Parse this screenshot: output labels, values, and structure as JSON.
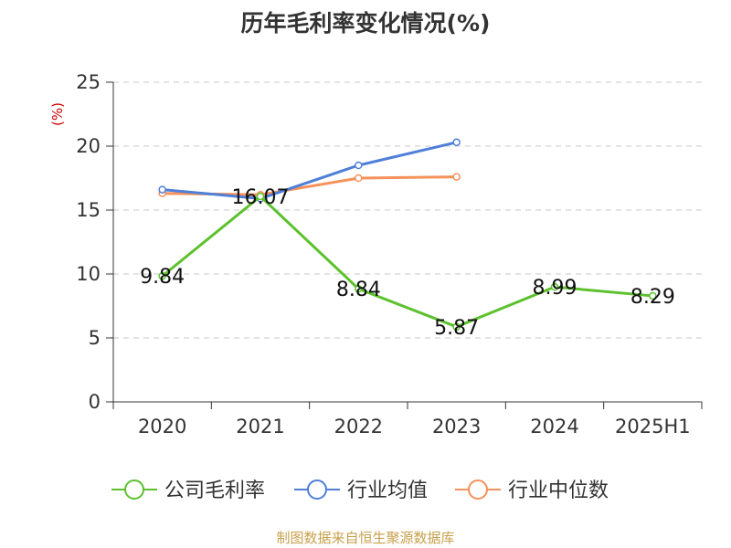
{
  "chart_data": {
    "type": "line",
    "title": "历年毛利率变化情况(%)",
    "ylabel": "(%)",
    "categories": [
      "2020",
      "2021",
      "2022",
      "2023",
      "2024",
      "2025H1"
    ],
    "ylim": [
      0,
      25
    ],
    "yticks": [
      0,
      5,
      10,
      15,
      20,
      25
    ],
    "grid": true,
    "legend_position": "bottom",
    "series": [
      {
        "name": "公司毛利率",
        "color": "#5cc12d",
        "values": [
          9.84,
          16.07,
          8.84,
          5.87,
          8.99,
          8.29
        ],
        "labels": [
          "9.84",
          "16.07",
          "8.84",
          "5.87",
          "8.99",
          "8.29"
        ],
        "show_labels": true
      },
      {
        "name": "行业均值",
        "color": "#4f7fd8",
        "values": [
          16.6,
          15.9,
          18.5,
          20.3,
          null,
          null
        ],
        "show_labels": false
      },
      {
        "name": "行业中位数",
        "color": "#f5915a",
        "values": [
          16.3,
          16.2,
          17.5,
          17.6,
          null,
          null
        ],
        "show_labels": false
      }
    ]
  },
  "footer": {
    "source": "制图数据来自恒生聚源数据库"
  }
}
